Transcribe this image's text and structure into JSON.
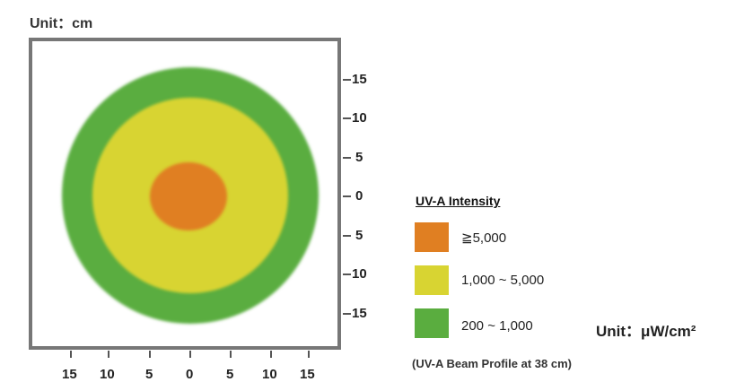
{
  "unit_top": "Unit：cm",
  "axis": {
    "x_ticks": [
      "15",
      "10",
      "5",
      "0",
      "5",
      "10",
      "15"
    ],
    "y_ticks": [
      "15",
      "10",
      "5",
      "0",
      "5",
      "10",
      "15"
    ]
  },
  "rings": [
    {
      "name": "green-outer",
      "color": "#5aad3f"
    },
    {
      "name": "yellow-middle",
      "color": "#d8d432"
    },
    {
      "name": "orange-core",
      "color": "#e07f22"
    }
  ],
  "legend": {
    "title": "UV-A Intensity",
    "items": [
      {
        "color": "#e07f22",
        "label": "≧5,000"
      },
      {
        "color": "#d8d432",
        "label": "1,000 ~ 5,000"
      },
      {
        "color": "#5aad3f",
        "label": "200 ~ 1,000"
      }
    ]
  },
  "unit_right": "Unit：μW/cm²",
  "caption": "(UV-A Beam Profile at 38 cm)"
}
